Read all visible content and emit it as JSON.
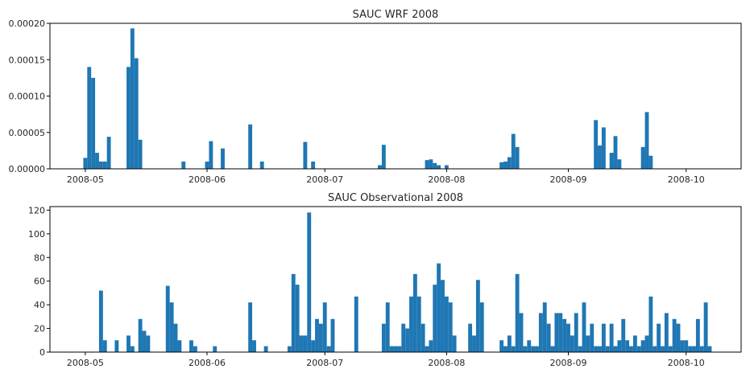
{
  "chart_data": [
    {
      "type": "bar",
      "title": "SAUC WRF 2008",
      "xlabel": "",
      "ylabel": "",
      "x_range": [
        "2008-04-22",
        "2008-10-15"
      ],
      "ylim": [
        0,
        0.0002
      ],
      "x_ticks": [
        "2008-05",
        "2008-06",
        "2008-07",
        "2008-08",
        "2008-09",
        "2008-10"
      ],
      "y_ticks": [
        "0.00000",
        "0.00005",
        "0.00010",
        "0.00015",
        "0.00020"
      ],
      "grid": false,
      "legend": "none",
      "bar_color": "#1f77b4",
      "x": [
        "2008-05-01",
        "2008-05-02",
        "2008-05-03",
        "2008-05-04",
        "2008-05-05",
        "2008-05-06",
        "2008-05-07",
        "2008-05-12",
        "2008-05-13",
        "2008-05-14",
        "2008-05-15",
        "2008-05-26",
        "2008-06-01",
        "2008-06-02",
        "2008-06-05",
        "2008-06-12",
        "2008-06-15",
        "2008-06-26",
        "2008-06-28",
        "2008-07-15",
        "2008-07-16",
        "2008-07-27",
        "2008-07-28",
        "2008-07-29",
        "2008-07-30",
        "2008-08-01",
        "2008-08-15",
        "2008-08-16",
        "2008-08-17",
        "2008-08-18",
        "2008-08-19",
        "2008-09-08",
        "2008-09-09",
        "2008-09-10",
        "2008-09-12",
        "2008-09-13",
        "2008-09-14",
        "2008-09-20",
        "2008-09-21",
        "2008-09-22"
      ],
      "values": [
        1.5e-05,
        0.00014,
        0.000125,
        2.2e-05,
        1e-05,
        1e-05,
        4.4e-05,
        0.00014,
        0.000193,
        0.000152,
        4e-05,
        1e-05,
        1e-05,
        3.8e-05,
        2.8e-05,
        6.1e-05,
        1e-05,
        3.7e-05,
        1e-05,
        5e-06,
        3.3e-05,
        1.2e-05,
        1.3e-05,
        8e-06,
        5e-06,
        5e-06,
        9e-06,
        1e-05,
        1.6e-05,
        4.8e-05,
        3e-05,
        6.7e-05,
        3.2e-05,
        5.7e-05,
        2.2e-05,
        4.5e-05,
        1.3e-05,
        3e-05,
        7.8e-05,
        1.8e-05
      ]
    },
    {
      "type": "bar",
      "title": "SAUC Observational 2008",
      "xlabel": "",
      "ylabel": "",
      "x_range": [
        "2008-04-22",
        "2008-10-15"
      ],
      "ylim": [
        0,
        123
      ],
      "x_ticks": [
        "2008-05",
        "2008-06",
        "2008-07",
        "2008-08",
        "2008-09",
        "2008-10"
      ],
      "y_ticks": [
        "0",
        "20",
        "40",
        "60",
        "80",
        "100",
        "120"
      ],
      "grid": false,
      "legend": "none",
      "bar_color": "#1f77b4",
      "x": [
        "2008-05-05",
        "2008-05-06",
        "2008-05-09",
        "2008-05-12",
        "2008-05-13",
        "2008-05-15",
        "2008-05-16",
        "2008-05-17",
        "2008-05-22",
        "2008-05-23",
        "2008-05-24",
        "2008-05-25",
        "2008-05-28",
        "2008-05-29",
        "2008-06-03",
        "2008-06-12",
        "2008-06-13",
        "2008-06-16",
        "2008-06-22",
        "2008-06-23",
        "2008-06-24",
        "2008-06-25",
        "2008-06-26",
        "2008-06-27",
        "2008-06-28",
        "2008-06-29",
        "2008-06-30",
        "2008-07-01",
        "2008-07-02",
        "2008-07-03",
        "2008-07-09",
        "2008-07-16",
        "2008-07-17",
        "2008-07-18",
        "2008-07-19",
        "2008-07-20",
        "2008-07-21",
        "2008-07-22",
        "2008-07-23",
        "2008-07-24",
        "2008-07-25",
        "2008-07-26",
        "2008-07-27",
        "2008-07-28",
        "2008-07-29",
        "2008-07-30",
        "2008-07-31",
        "2008-08-01",
        "2008-08-02",
        "2008-08-03",
        "2008-08-07",
        "2008-08-08",
        "2008-08-09",
        "2008-08-10",
        "2008-08-15",
        "2008-08-16",
        "2008-08-17",
        "2008-08-18",
        "2008-08-19",
        "2008-08-20",
        "2008-08-21",
        "2008-08-22",
        "2008-08-23",
        "2008-08-24",
        "2008-08-25",
        "2008-08-26",
        "2008-08-27",
        "2008-08-28",
        "2008-08-29",
        "2008-08-30",
        "2008-08-31",
        "2008-09-01",
        "2008-09-02",
        "2008-09-03",
        "2008-09-04",
        "2008-09-05",
        "2008-09-06",
        "2008-09-07",
        "2008-09-08",
        "2008-09-09",
        "2008-09-10",
        "2008-09-11",
        "2008-09-12",
        "2008-09-13",
        "2008-09-14",
        "2008-09-15",
        "2008-09-16",
        "2008-09-17",
        "2008-09-18",
        "2008-09-19",
        "2008-09-20",
        "2008-09-21",
        "2008-09-22",
        "2008-09-23",
        "2008-09-24",
        "2008-09-25",
        "2008-09-26",
        "2008-09-27",
        "2008-09-28",
        "2008-09-29",
        "2008-09-30",
        "2008-10-01",
        "2008-10-02",
        "2008-10-03",
        "2008-10-04",
        "2008-10-05",
        "2008-10-06",
        "2008-10-07"
      ],
      "values": [
        52,
        10,
        10,
        14,
        5,
        28,
        18,
        14,
        56,
        42,
        24,
        10,
        10,
        5,
        5,
        42,
        10,
        5,
        5,
        66,
        57,
        14,
        14,
        118,
        10,
        28,
        24,
        42,
        5,
        28,
        47,
        24,
        42,
        5,
        5,
        5,
        24,
        20,
        47,
        66,
        47,
        24,
        5,
        10,
        57,
        75,
        61,
        47,
        42,
        14,
        24,
        14,
        61,
        42,
        10,
        5,
        14,
        5,
        66,
        33,
        5,
        10,
        5,
        5,
        33,
        42,
        24,
        5,
        33,
        33,
        28,
        24,
        14,
        33,
        5,
        42,
        14,
        24,
        5,
        5,
        24,
        5,
        24,
        5,
        10,
        28,
        10,
        5,
        14,
        5,
        10,
        14,
        47,
        5,
        24,
        5,
        33,
        5,
        28,
        24,
        10,
        10,
        5,
        5,
        28,
        5,
        42,
        5
      ]
    }
  ]
}
